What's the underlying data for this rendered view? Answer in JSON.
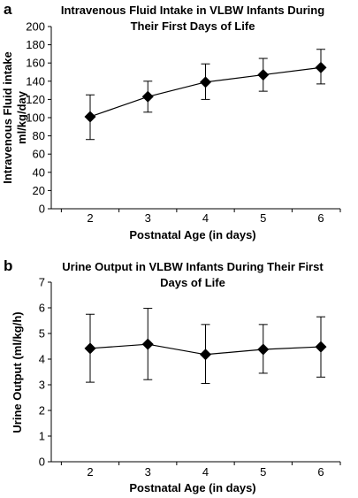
{
  "chart_data": [
    {
      "type": "line",
      "panel_letter": "a",
      "title_lines": [
        "Intravenous Fluid Intake in VLBW Infants During",
        "Their First Days of Life"
      ],
      "xlabel": "Postnatal Age (in days)",
      "ylabel_lines": [
        "Intravenous Fluid intake",
        "ml/kg/day"
      ],
      "categories": [
        "2",
        "3",
        "4",
        "5",
        "6"
      ],
      "x": [
        2,
        3,
        4,
        5,
        6
      ],
      "y_ticks": [
        0,
        20,
        40,
        60,
        80,
        100,
        120,
        140,
        160,
        180,
        200
      ],
      "ylim": [
        0,
        200
      ],
      "series": [
        {
          "values": [
            101,
            123,
            139,
            147,
            155
          ],
          "error_low": [
            76,
            106,
            120,
            129,
            137
          ],
          "error_high": [
            125,
            140,
            159,
            165,
            175
          ]
        }
      ],
      "marker": "diamond",
      "error_bars": true,
      "grid": false,
      "legend": "none"
    },
    {
      "type": "line",
      "panel_letter": "b",
      "title_lines": [
        "Urine Output in VLBW Infants During Their First",
        "Days of Life"
      ],
      "xlabel": "Postnatal Age (in days)",
      "ylabel_lines": [
        "Urine Output (ml/kg/h)"
      ],
      "categories": [
        "2",
        "3",
        "4",
        "5",
        "6"
      ],
      "x": [
        2,
        3,
        4,
        5,
        6
      ],
      "y_ticks": [
        0,
        1,
        2,
        3,
        4,
        5,
        6,
        7
      ],
      "ylim": [
        0,
        7
      ],
      "series": [
        {
          "values": [
            4.42,
            4.58,
            4.18,
            4.38,
            4.48
          ],
          "error_low": [
            3.1,
            3.2,
            3.05,
            3.45,
            3.3
          ],
          "error_high": [
            5.75,
            5.98,
            5.35,
            5.35,
            5.65
          ]
        }
      ],
      "marker": "diamond",
      "error_bars": true,
      "grid": false,
      "legend": "none"
    }
  ]
}
